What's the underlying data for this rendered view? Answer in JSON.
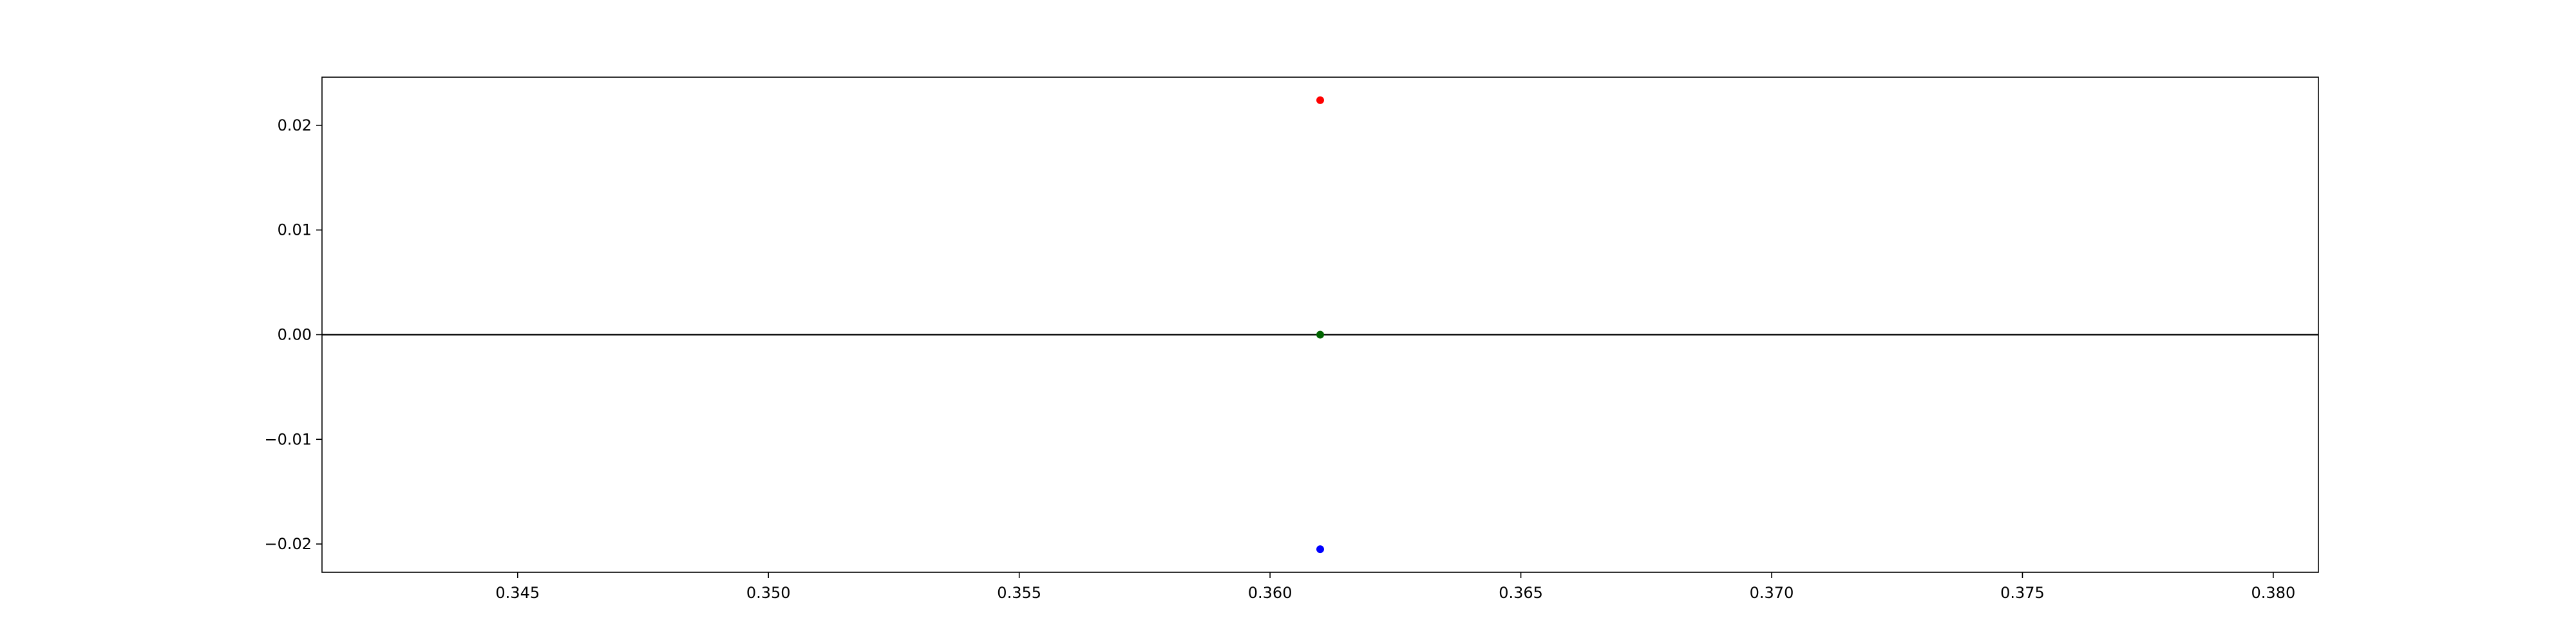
{
  "chart_data": {
    "type": "scatter",
    "title": "",
    "xlabel": "",
    "ylabel": "",
    "xlim": [
      0.3411,
      0.3809
    ],
    "ylim": [
      -0.0227,
      0.0246
    ],
    "grid": false,
    "x_ticks": [
      0.345,
      0.35,
      0.355,
      0.36,
      0.365,
      0.37,
      0.375,
      0.38
    ],
    "x_tick_labels": [
      "0.345",
      "0.350",
      "0.355",
      "0.360",
      "0.365",
      "0.370",
      "0.375",
      "0.380"
    ],
    "y_ticks": [
      0.02,
      0.01,
      0.0,
      -0.01,
      -0.02
    ],
    "y_tick_labels": [
      "0.02",
      "0.01",
      "0.00",
      "−0.01",
      "−0.02"
    ],
    "horizontal_line": {
      "y": 0.0,
      "color": "#000000"
    },
    "points": [
      {
        "x": 0.361,
        "y": 0.0224,
        "color": "#ff0000"
      },
      {
        "x": 0.361,
        "y": 0.0,
        "color": "#006400"
      },
      {
        "x": 0.361,
        "y": -0.0205,
        "color": "#0000ff"
      }
    ]
  }
}
